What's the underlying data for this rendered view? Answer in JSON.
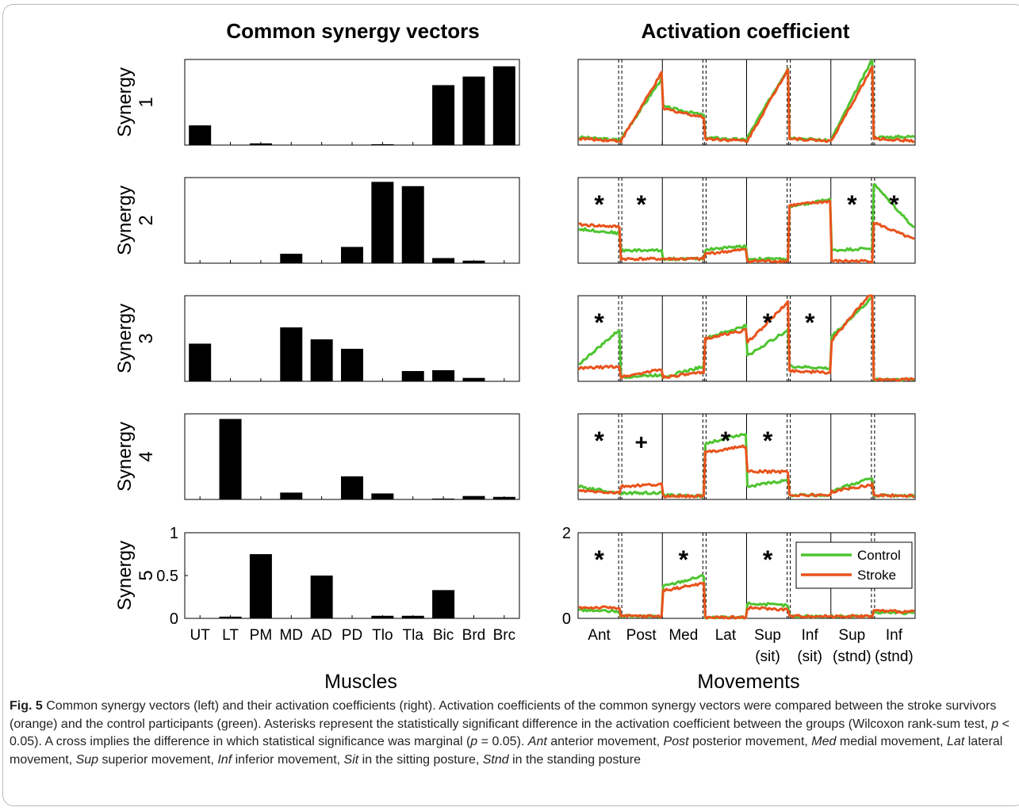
{
  "headings": {
    "left": "Common synergy vectors",
    "right": "Activation coefficient"
  },
  "xlabels": {
    "left": "Muscles",
    "right": "Movements"
  },
  "synergy_label": "Synergy",
  "muscles": [
    "UT",
    "LT",
    "PM",
    "MD",
    "AD",
    "PD",
    "Tlo",
    "Tla",
    "Bic",
    "Brd",
    "Brc"
  ],
  "movements": [
    {
      "l1": "Ant",
      "l2": ""
    },
    {
      "l1": "Post",
      "l2": ""
    },
    {
      "l1": "Med",
      "l2": ""
    },
    {
      "l1": "Lat",
      "l2": ""
    },
    {
      "l1": "Sup",
      "l2": "(sit)"
    },
    {
      "l1": "Inf",
      "l2": "(sit)"
    },
    {
      "l1": "Sup",
      "l2": "(stnd)"
    },
    {
      "l1": "Inf",
      "l2": "(stnd)"
    }
  ],
  "legend": [
    "Control",
    "Stroke"
  ],
  "colors": {
    "control": "#4fc430",
    "stroke": "#e8531c",
    "bar": "#000000"
  },
  "caption": {
    "label": "Fig. 5",
    "parts": [
      {
        "t": "Common synergy vectors (left) and their activation coefficients (right). Activation coefficients of the common synergy vectors were compared between the stroke survivors (orange) and the control participants (green). Asterisks represent the statistically significant difference in the activation coefficient between the groups (Wilcoxon rank-sum test, "
      },
      {
        "t": "p",
        "i": true
      },
      {
        "t": " < 0.05). A cross implies the difference in which statistical significance was marginal ("
      },
      {
        "t": "p",
        "i": true
      },
      {
        "t": " = 0.05). "
      },
      {
        "t": "Ant",
        "i": true
      },
      {
        "t": " anterior movement, "
      },
      {
        "t": "Post",
        "i": true
      },
      {
        "t": " posterior movement, "
      },
      {
        "t": "Med",
        "i": true
      },
      {
        "t": " medial movement, "
      },
      {
        "t": "Lat",
        "i": true
      },
      {
        "t": " lateral movement, "
      },
      {
        "t": "Sup",
        "i": true
      },
      {
        "t": " superior movement, "
      },
      {
        "t": "Inf",
        "i": true
      },
      {
        "t": " inferior movement, "
      },
      {
        "t": "Sit",
        "i": true
      },
      {
        "t": " in the sitting posture, "
      },
      {
        "t": "Stnd",
        "i": true
      },
      {
        "t": " in the standing posture"
      }
    ]
  },
  "chart_data": [
    {
      "type": "bar",
      "title": "Common synergy vectors",
      "xlabel": "Muscles",
      "ylim": [
        0,
        1
      ],
      "yticks_shown_on": "Synergy 5",
      "yticks": [
        0,
        0.5,
        1
      ],
      "categories": [
        "UT",
        "LT",
        "PM",
        "MD",
        "AD",
        "PD",
        "Tlo",
        "Tla",
        "Bic",
        "Brd",
        "Brc"
      ],
      "series": [
        {
          "name": "Synergy 1",
          "values": [
            0.23,
            0,
            0.02,
            0,
            0,
            0,
            0.01,
            0,
            0.7,
            0.8,
            0.92
          ]
        },
        {
          "name": "Synergy 2",
          "values": [
            0,
            0,
            0,
            0.11,
            0,
            0.19,
            0.95,
            0.9,
            0.06,
            0.03,
            0
          ]
        },
        {
          "name": "Synergy 3",
          "values": [
            0.44,
            0,
            0,
            0.63,
            0.49,
            0.38,
            0,
            0.12,
            0.13,
            0.04,
            0
          ]
        },
        {
          "name": "Synergy 4",
          "values": [
            0,
            0.94,
            0,
            0.08,
            0,
            0.27,
            0.07,
            0,
            0.01,
            0.04,
            0.03
          ]
        },
        {
          "name": "Synergy 5",
          "values": [
            0,
            0.02,
            0.75,
            0,
            0.5,
            0,
            0.03,
            0.03,
            0.33,
            0,
            0
          ]
        }
      ]
    },
    {
      "type": "line",
      "title": "Activation coefficient",
      "xlabel": "Movements",
      "ylim": [
        0,
        2
      ],
      "yticks_shown_on": "Synergy 5",
      "yticks": [
        0,
        2
      ],
      "categories": [
        "Ant",
        "Post",
        "Med",
        "Lat",
        "Sup (sit)",
        "Inf (sit)",
        "Sup (stnd)",
        "Inf (stnd)"
      ],
      "legend": [
        "Control",
        "Stroke"
      ],
      "legend_position": "inside-right (Synergy 5)",
      "panels": [
        {
          "name": "Synergy 1",
          "control": [
            [
              0.18,
              0.12
            ],
            [
              0.15,
              1.55
            ],
            [
              0.9,
              0.7
            ],
            [
              0.18,
              0.12
            ],
            [
              0.18,
              1.8
            ],
            [
              0.18,
              0.1
            ],
            [
              0.15,
              2.0
            ],
            [
              0.18,
              0.2
            ]
          ],
          "stroke": [
            [
              0.15,
              0.1
            ],
            [
              0.1,
              1.68
            ],
            [
              0.85,
              0.65
            ],
            [
              0.15,
              0.1
            ],
            [
              0.1,
              1.78
            ],
            [
              0.15,
              0.1
            ],
            [
              0.1,
              1.82
            ],
            [
              0.15,
              0.1
            ]
          ],
          "marks": [
            "",
            "",
            "",
            "",
            "",
            "",
            "",
            ""
          ]
        },
        {
          "name": "Synergy 2",
          "control": [
            [
              0.8,
              0.7
            ],
            [
              0.3,
              0.3
            ],
            [
              0.1,
              0.1
            ],
            [
              0.32,
              0.4
            ],
            [
              0.1,
              0.1
            ],
            [
              1.3,
              1.5
            ],
            [
              0.3,
              0.35
            ],
            [
              1.85,
              0.82
            ]
          ],
          "stroke": [
            [
              0.9,
              0.85
            ],
            [
              0.1,
              0.1
            ],
            [
              0.1,
              0.1
            ],
            [
              0.22,
              0.32
            ],
            [
              0.05,
              0.05
            ],
            [
              1.35,
              1.45
            ],
            [
              0.05,
              0.05
            ],
            [
              0.95,
              0.55
            ]
          ],
          "marks": [
            "*",
            "*",
            "",
            "",
            "",
            "",
            "*",
            "*"
          ]
        },
        {
          "name": "Synergy 3",
          "control": [
            [
              0.4,
              1.2
            ],
            [
              0.1,
              0.15
            ],
            [
              0.1,
              0.35
            ],
            [
              1.0,
              1.3
            ],
            [
              0.6,
              1.2
            ],
            [
              0.35,
              0.3
            ],
            [
              1.05,
              1.95
            ],
            [
              0.05,
              0.05
            ]
          ],
          "stroke": [
            [
              0.3,
              0.35
            ],
            [
              0.1,
              0.28
            ],
            [
              0.1,
              0.2
            ],
            [
              1.0,
              1.2
            ],
            [
              0.9,
              1.85
            ],
            [
              0.25,
              0.2
            ],
            [
              0.95,
              2.1
            ],
            [
              0.05,
              0.05
            ]
          ],
          "marks": [
            "*",
            "",
            "",
            "",
            "*",
            "*",
            "",
            ""
          ]
        },
        {
          "name": "Synergy 4",
          "control": [
            [
              0.3,
              0.15
            ],
            [
              0.15,
              0.15
            ],
            [
              0.1,
              0.08
            ],
            [
              1.3,
              1.55
            ],
            [
              0.3,
              0.45
            ],
            [
              0.1,
              0.1
            ],
            [
              0.2,
              0.5
            ],
            [
              0.1,
              0.08
            ]
          ],
          "stroke": [
            [
              0.2,
              0.15
            ],
            [
              0.3,
              0.35
            ],
            [
              0.08,
              0.08
            ],
            [
              1.1,
              1.25
            ],
            [
              0.65,
              0.65
            ],
            [
              0.1,
              0.1
            ],
            [
              0.18,
              0.35
            ],
            [
              0.1,
              0.08
            ]
          ],
          "marks": [
            "*",
            "+",
            "",
            "*",
            "*",
            "",
            "",
            ""
          ]
        },
        {
          "name": "Synergy 5",
          "control": [
            [
              0.2,
              0.15
            ],
            [
              0.05,
              0.05
            ],
            [
              0.75,
              1.0
            ],
            [
              0.02,
              0.02
            ],
            [
              0.35,
              0.3
            ],
            [
              0.05,
              0.05
            ],
            [
              0.05,
              0.05
            ],
            [
              0.15,
              0.12
            ]
          ],
          "stroke": [
            [
              0.25,
              0.25
            ],
            [
              0.05,
              0.05
            ],
            [
              0.65,
              0.82
            ],
            [
              0.02,
              0.02
            ],
            [
              0.25,
              0.2
            ],
            [
              0.05,
              0.05
            ],
            [
              0.05,
              0.05
            ],
            [
              0.18,
              0.15
            ]
          ],
          "marks": [
            "*",
            "",
            "*",
            "",
            "*",
            "",
            "",
            ""
          ]
        }
      ]
    }
  ]
}
